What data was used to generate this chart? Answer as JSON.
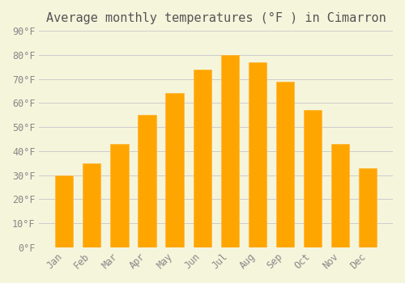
{
  "title": "Average monthly temperatures (°F ) in Cimarron",
  "months": [
    "Jan",
    "Feb",
    "Mar",
    "Apr",
    "May",
    "Jun",
    "Jul",
    "Aug",
    "Sep",
    "Oct",
    "Nov",
    "Dec"
  ],
  "values": [
    30,
    35,
    43,
    55,
    64,
    74,
    80,
    77,
    69,
    57,
    43,
    33
  ],
  "bar_color": "#FFA500",
  "bar_edge_color": "#FFB733",
  "background_color": "#F5F5DC",
  "grid_color": "#CCCCCC",
  "ylim": [
    0,
    90
  ],
  "yticks": [
    0,
    10,
    20,
    30,
    40,
    50,
    60,
    70,
    80,
    90
  ],
  "ytick_labels": [
    "0°F",
    "10°F",
    "20°F",
    "30°F",
    "40°F",
    "50°F",
    "60°F",
    "70°F",
    "80°F",
    "90°F"
  ],
  "title_fontsize": 11,
  "tick_fontsize": 8.5,
  "font_family": "monospace"
}
